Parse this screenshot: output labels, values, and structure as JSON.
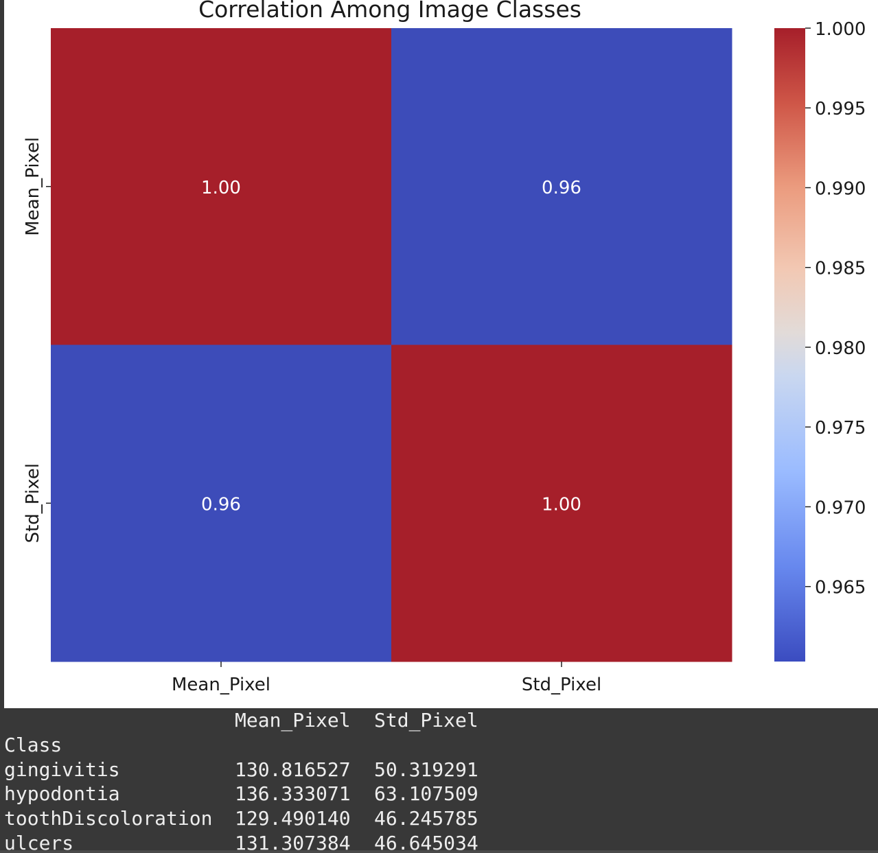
{
  "chart_data": {
    "type": "heatmap",
    "title": "Correlation Among Image Classes",
    "row_labels": [
      "Mean_Pixel",
      "Std_Pixel"
    ],
    "col_labels": [
      "Mean_Pixel",
      "Std_Pixel"
    ],
    "values": [
      [
        1.0,
        0.96
      ],
      [
        0.96,
        1.0
      ]
    ],
    "cell_labels": [
      [
        "1.00",
        "0.96"
      ],
      [
        "0.96",
        "1.00"
      ]
    ],
    "colormap": "coolwarm",
    "colors": {
      "high": "#a61f2a",
      "low": "#3d4cb9",
      "annotation_text": "#ffffff"
    },
    "colorbar": {
      "min": 0.9603,
      "max": 1.0,
      "ticks": [
        "1.000",
        "0.995",
        "0.990",
        "0.985",
        "0.980",
        "0.975",
        "0.970",
        "0.965"
      ]
    },
    "legend": "colorbar-right",
    "grid": false
  },
  "console_output": {
    "header": [
      "",
      "Mean_Pixel",
      "Std_Pixel"
    ],
    "index_name": "Class",
    "rows": [
      [
        "gingivitis",
        "130.816527",
        "50.319291"
      ],
      [
        "hypodontia",
        "136.333071",
        "63.107509"
      ],
      [
        "toothDiscoloration",
        "129.490140",
        "46.245785"
      ],
      [
        "ulcers",
        "131.307384",
        "46.645034"
      ]
    ]
  }
}
